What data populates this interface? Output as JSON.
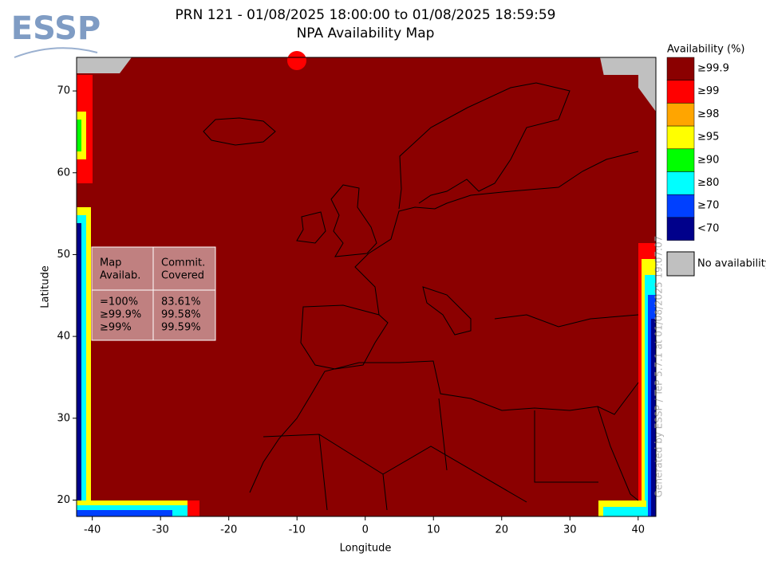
{
  "logo": "ESSP",
  "title": [
    "PRN 121 - 01/08/2025 18:00:00 to 01/08/2025 18:59:59",
    "NPA Availability Map"
  ],
  "map": {
    "xlabel": "Longitude",
    "ylabel": "Latitude",
    "xlim": [
      -42.3,
      42.6
    ],
    "ylim": [
      18,
      74.1
    ],
    "xticks": [
      -40,
      -30,
      -20,
      -10,
      0,
      10,
      20,
      30,
      40
    ],
    "yticks": [
      20,
      30,
      40,
      50,
      60,
      70
    ]
  },
  "legend": {
    "title": "Availability (%)",
    "items": [
      {
        "label": "≥99.9",
        "color": "#8b0000"
      },
      {
        "label": "≥99",
        "color": "#ff0000"
      },
      {
        "label": "≥98",
        "color": "#ffa500"
      },
      {
        "label": "≥95",
        "color": "#ffff00"
      },
      {
        "label": "≥90",
        "color": "#00ff00"
      },
      {
        "label": "≥80",
        "color": "#00ffff"
      },
      {
        "label": "≥70",
        "color": "#0040ff"
      },
      {
        "label": "<70",
        "color": "#00008b"
      }
    ],
    "no_availability": {
      "label": "No availability",
      "color": "#c0c0c0"
    }
  },
  "table": {
    "headers": [
      [
        "Map",
        "Availab."
      ],
      [
        "Commit.",
        "Covered"
      ]
    ],
    "rows": [
      [
        "=100%",
        "83.61%"
      ],
      [
        "≥99.9%",
        "99.58%"
      ],
      [
        "≥99%",
        "99.59%"
      ]
    ]
  },
  "watermark": "Generated by ESSP / TeP 5.7.1 at 01/08/2025 19:07:07"
}
